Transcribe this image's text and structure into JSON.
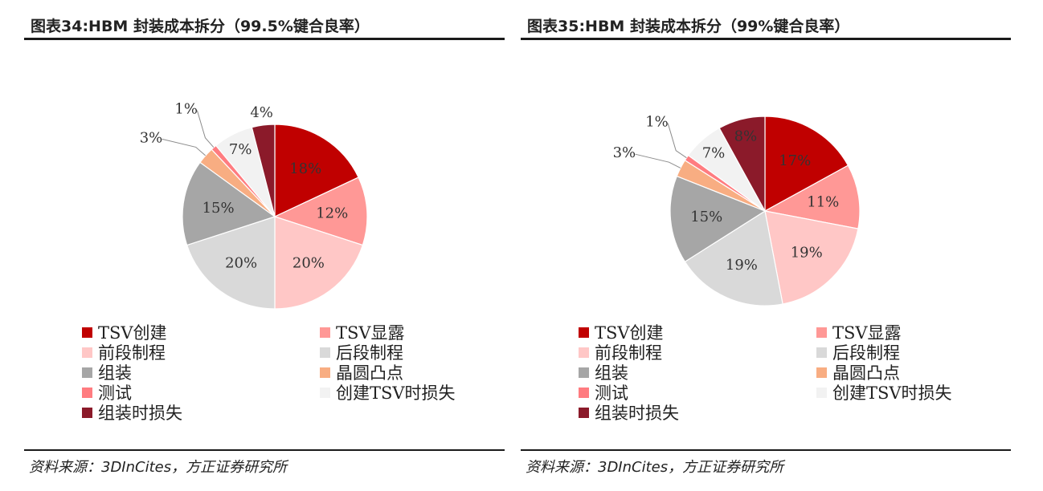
{
  "legend_categories": [
    "TSV创建",
    "TSV显露",
    "前段制程",
    "后段制程",
    "组装",
    "晶圆凸点",
    "测试",
    "创建TSV时损失",
    "组装时损失"
  ],
  "colors": [
    "#c00000",
    "#ff9896",
    "#ffc7c6",
    "#d9d9d9",
    "#a6a6a6",
    "#f8ad82",
    "#ff7c80",
    "#f2f2f2",
    "#8b1a2a"
  ],
  "panels": [
    {
      "title": "图表34:HBM 封装成本拆分（99.5%键合良率）",
      "source": "资料来源：3DInCites，方正证券研究所"
    },
    {
      "title": "图表35:HBM 封装成本拆分（99%键合良率）",
      "source": "资料来源：3DInCites，方正证券研究所"
    }
  ],
  "chart_data": [
    {
      "type": "pie",
      "title": "图表34:HBM 封装成本拆分（99.5%键合良率）",
      "categories": [
        "TSV创建",
        "TSV显露",
        "前段制程",
        "后段制程",
        "组装",
        "晶圆凸点",
        "测试",
        "创建TSV时损失",
        "组装时损失"
      ],
      "values": [
        18,
        12,
        20,
        20,
        15,
        3,
        1,
        7,
        4
      ],
      "labels": [
        "18%",
        "12%",
        "20%",
        "20%",
        "15%",
        "3%",
        "1%",
        "7%",
        "4%"
      ],
      "legend_position": "bottom"
    },
    {
      "type": "pie",
      "title": "图表35:HBM 封装成本拆分（99%键合良率）",
      "categories": [
        "TSV创建",
        "TSV显露",
        "前段制程",
        "后段制程",
        "组装",
        "晶圆凸点",
        "测试",
        "创建TSV时损失",
        "组装时损失"
      ],
      "values": [
        17,
        11,
        19,
        19,
        15,
        3,
        1,
        7,
        8
      ],
      "labels": [
        "17%",
        "11%",
        "19%",
        "19%",
        "15%",
        "3%",
        "1%",
        "7%",
        "8%"
      ],
      "legend_position": "bottom"
    }
  ]
}
